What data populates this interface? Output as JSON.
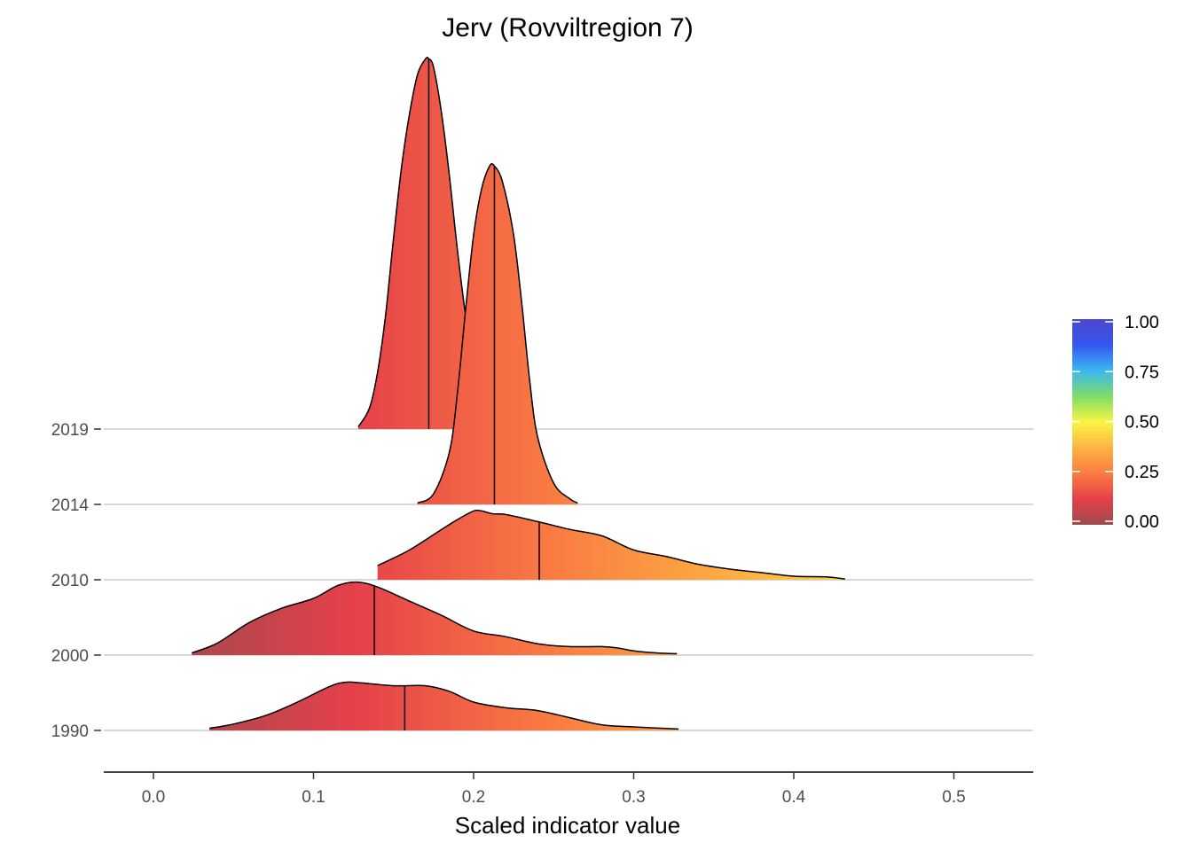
{
  "chart_data": {
    "type": "ridgeline-density",
    "title": "Jerv (Rovviltregion 7)",
    "xlabel": "Scaled indicator value",
    "ylabel": "",
    "xlim": [
      -0.03,
      0.55
    ],
    "x_ticks": [
      0.0,
      0.1,
      0.2,
      0.3,
      0.4,
      0.5
    ],
    "x_tick_labels": [
      "0.0",
      "0.1",
      "0.2",
      "0.3",
      "0.4",
      "0.5"
    ],
    "grid": "horizontal baselines only",
    "categories": [
      "1990",
      "2000",
      "2010",
      "2014",
      "2019"
    ],
    "fill": "gradient by x value",
    "legend": {
      "placement": "right",
      "type": "colorbar",
      "range": [
        0,
        1
      ],
      "ticks": [
        0.0,
        0.25,
        0.5,
        0.75,
        1.0
      ],
      "tick_labels": [
        "0.00",
        "0.25",
        "0.50",
        "0.75",
        "1.00"
      ],
      "colors": [
        "#9e4a4f",
        "#e5404a",
        "#fa7c42",
        "#fcb443",
        "#f9f542",
        "#7fdc6a",
        "#3ab8f0",
        "#3555f2",
        "#4c48c8"
      ]
    },
    "series": [
      {
        "name": "1990",
        "median": 0.157,
        "range": [
          0.035,
          0.328
        ],
        "x": [
          0.035,
          0.05,
          0.07,
          0.09,
          0.11,
          0.12,
          0.13,
          0.15,
          0.17,
          0.185,
          0.2,
          0.22,
          0.24,
          0.26,
          0.28,
          0.3,
          0.328
        ],
        "y": [
          0.03,
          0.09,
          0.21,
          0.4,
          0.62,
          0.68,
          0.67,
          0.63,
          0.63,
          0.55,
          0.4,
          0.32,
          0.28,
          0.18,
          0.08,
          0.05,
          0.02
        ]
      },
      {
        "name": "2000",
        "median": 0.138,
        "range": [
          0.024,
          0.327
        ],
        "x": [
          0.024,
          0.04,
          0.06,
          0.08,
          0.1,
          0.115,
          0.127,
          0.14,
          0.16,
          0.18,
          0.2,
          0.22,
          0.24,
          0.26,
          0.28,
          0.29,
          0.3,
          0.315,
          0.327
        ],
        "y": [
          0.03,
          0.17,
          0.46,
          0.66,
          0.8,
          0.98,
          1.03,
          0.96,
          0.76,
          0.56,
          0.34,
          0.26,
          0.16,
          0.12,
          0.12,
          0.1,
          0.06,
          0.03,
          0.02
        ]
      },
      {
        "name": "2010",
        "median": 0.241,
        "range": [
          0.14,
          0.432
        ],
        "x": [
          0.14,
          0.16,
          0.18,
          0.19,
          0.2,
          0.205,
          0.212,
          0.22,
          0.24,
          0.26,
          0.28,
          0.3,
          0.32,
          0.34,
          0.36,
          0.38,
          0.4,
          0.42,
          0.432
        ],
        "y": [
          0.2,
          0.42,
          0.71,
          0.85,
          0.97,
          0.97,
          0.93,
          0.92,
          0.82,
          0.71,
          0.62,
          0.42,
          0.33,
          0.22,
          0.15,
          0.1,
          0.05,
          0.04,
          0.01
        ]
      },
      {
        "name": "2014",
        "median": 0.213,
        "range": [
          0.165,
          0.265
        ],
        "x": [
          0.165,
          0.175,
          0.185,
          0.19,
          0.195,
          0.2,
          0.205,
          0.21,
          0.213,
          0.218,
          0.225,
          0.23,
          0.235,
          0.24,
          0.25,
          0.26,
          0.265
        ],
        "y": [
          0.02,
          0.15,
          0.75,
          1.6,
          2.75,
          3.8,
          4.45,
          4.77,
          4.77,
          4.55,
          3.8,
          2.85,
          1.75,
          0.95,
          0.3,
          0.08,
          0.02
        ]
      },
      {
        "name": "2019",
        "median": 0.172,
        "range": [
          0.128,
          0.214
        ],
        "x": [
          0.128,
          0.135,
          0.14,
          0.145,
          0.15,
          0.155,
          0.16,
          0.165,
          0.17,
          0.172,
          0.175,
          0.18,
          0.185,
          0.19,
          0.195,
          0.2,
          0.205,
          0.214
        ],
        "y": [
          0.03,
          0.3,
          0.8,
          1.6,
          2.7,
          3.7,
          4.45,
          5.0,
          5.22,
          5.22,
          5.1,
          4.45,
          3.55,
          2.5,
          1.6,
          0.9,
          0.42,
          0.06
        ]
      }
    ]
  }
}
